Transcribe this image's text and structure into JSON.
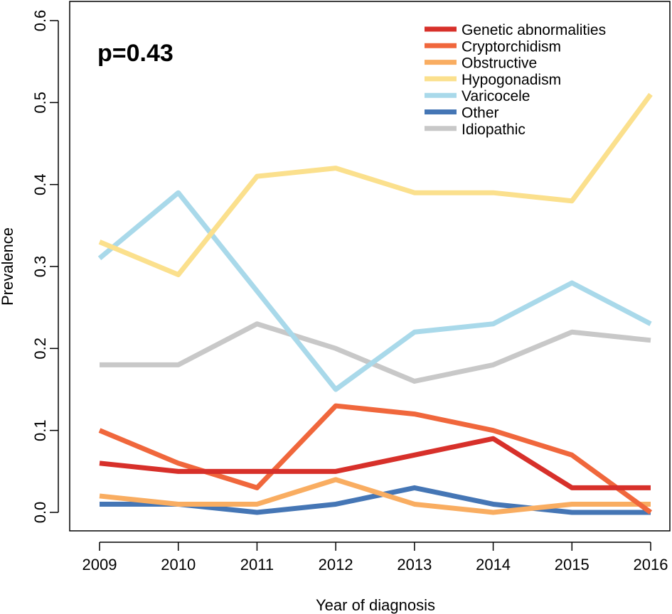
{
  "chart_data": {
    "type": "line",
    "title": "",
    "annotation": "p=0.43",
    "xlabel": "Year of diagnosis",
    "ylabel": "Prevalence",
    "x": [
      2009,
      2010,
      2011,
      2012,
      2013,
      2014,
      2015,
      2016
    ],
    "x_tick_labels": [
      "2009",
      "2010",
      "2011",
      "2012",
      "2013",
      "2014",
      "2015",
      "2016"
    ],
    "xlim": [
      2009,
      2016
    ],
    "ylim": [
      0,
      0.6
    ],
    "y_ticks": [
      0,
      0.1,
      0.2,
      0.3,
      0.4,
      0.5,
      0.6
    ],
    "y_tick_labels": [
      "0.0",
      "0.1",
      "0.2",
      "0.3",
      "0.4",
      "0.5",
      "0.6"
    ],
    "grid": false,
    "legend_position": "top-right",
    "series": [
      {
        "name": "Genetic abnormalities",
        "color": "#d7302a",
        "values": [
          0.06,
          0.05,
          0.05,
          0.05,
          0.07,
          0.09,
          0.03,
          0.03
        ]
      },
      {
        "name": "Cryptorchidism",
        "color": "#f0673c",
        "values": [
          0.1,
          0.06,
          0.03,
          0.13,
          0.12,
          0.1,
          0.07,
          0.0
        ]
      },
      {
        "name": "Obstructive",
        "color": "#f9ad61",
        "values": [
          0.02,
          0.01,
          0.01,
          0.04,
          0.01,
          0.0,
          0.01,
          0.01
        ]
      },
      {
        "name": "Hypogonadism",
        "color": "#fbe08d",
        "values": [
          0.33,
          0.29,
          0.41,
          0.42,
          0.39,
          0.39,
          0.38,
          0.51
        ]
      },
      {
        "name": "Varicocele",
        "color": "#a9d9ea",
        "values": [
          0.31,
          0.39,
          0.27,
          0.15,
          0.22,
          0.23,
          0.28,
          0.23
        ]
      },
      {
        "name": "Other",
        "color": "#4576b5",
        "values": [
          0.01,
          0.01,
          0.0,
          0.01,
          0.03,
          0.01,
          0.0,
          0.0
        ]
      },
      {
        "name": "Idiopathic",
        "color": "#c8c8c8",
        "values": [
          0.18,
          0.18,
          0.23,
          0.2,
          0.16,
          0.18,
          0.22,
          0.21
        ]
      }
    ]
  }
}
